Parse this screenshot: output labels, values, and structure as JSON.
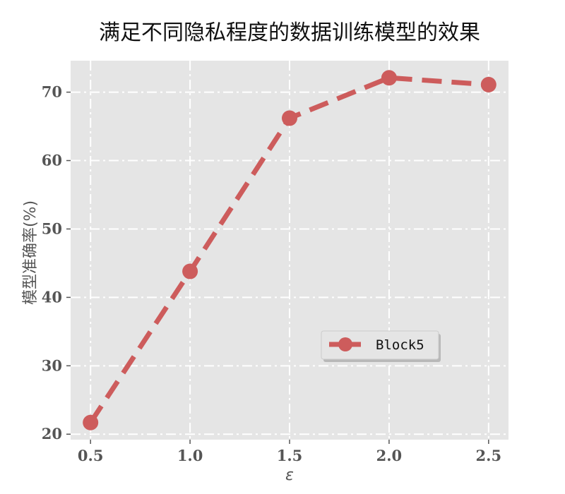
{
  "chart_data": {
    "type": "line",
    "title": "满足不同隐私程度的数据训练模型的效果",
    "xlabel": "ε",
    "ylabel": "模型准确率(%)",
    "x": [
      0.5,
      1.0,
      1.5,
      2.0,
      2.5
    ],
    "x_tick_labels": [
      "0.5",
      "1.0",
      "1.5",
      "2.0",
      "2.5"
    ],
    "y_ticks": [
      20,
      30,
      40,
      50,
      60,
      70
    ],
    "y_tick_labels": [
      "20",
      "30",
      "40",
      "50",
      "60",
      "70"
    ],
    "xlim": [
      0.4,
      2.6
    ],
    "ylim": [
      19.2,
      74.6
    ],
    "grid": true,
    "legend_position": "center-right",
    "series": [
      {
        "name": "Block5",
        "values": [
          21.7,
          43.8,
          66.2,
          72.1,
          71.1
        ],
        "color": "#cd5c5c",
        "line_style": "dashed",
        "marker": "circle"
      }
    ]
  },
  "style": {
    "plot_background": "#e5e5e5",
    "grid_color": "#ffffff"
  }
}
